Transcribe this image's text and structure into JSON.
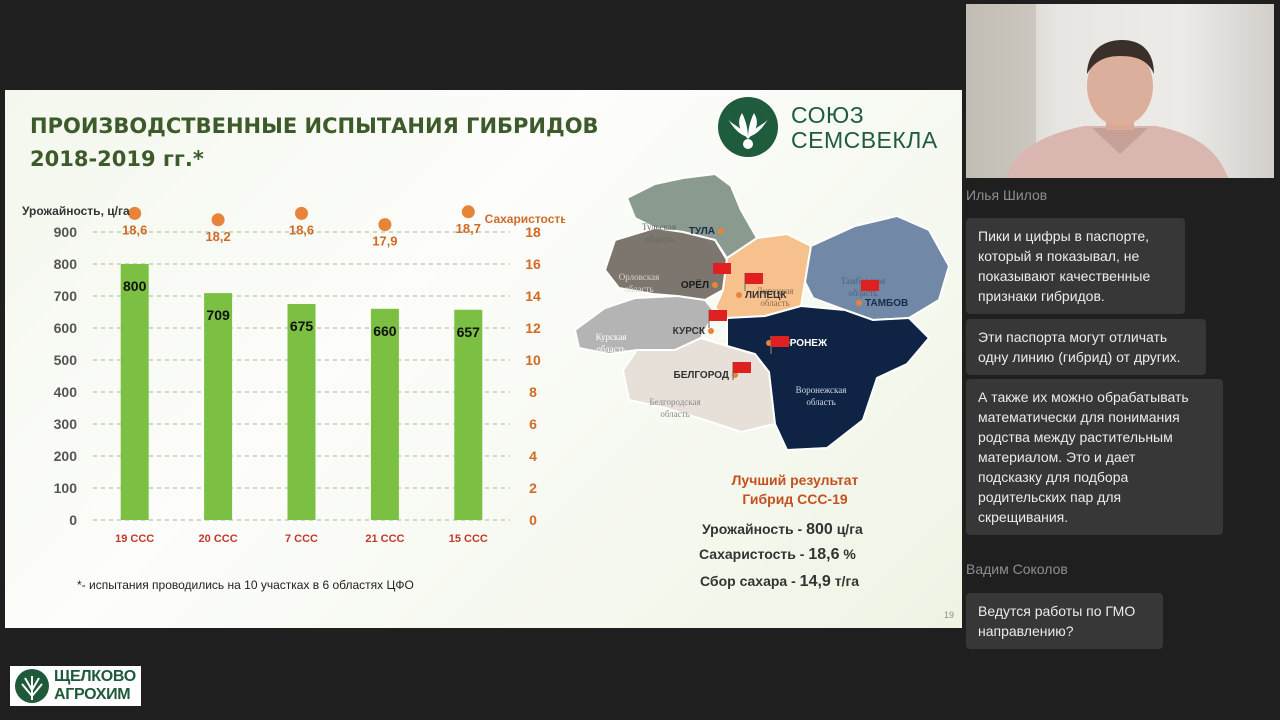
{
  "slide": {
    "title_line1": "ПРОИЗВОДСТВЕННЫЕ ИСПЫТАНИЯ ГИБРИДОВ",
    "title_line2": "2018-2019 гг.*",
    "footnote": "*- испытания проводились на 10 участках в 6 областях ЦФО",
    "page_number": "19",
    "logo_line1": "СОЮЗ",
    "logo_line2": "СЕМСВЕКЛА",
    "best_title_line1": "Лучший результат",
    "best_title_line2": "Гибрид ССС-19",
    "metrics": [
      {
        "label": "Урожайность - ",
        "value": "800",
        "unit": " ц/га"
      },
      {
        "label": "Сахаристость - ",
        "value": "18,6",
        "unit": " %"
      },
      {
        "label": "Сбор сахара - ",
        "value": "14,9",
        "unit": " т/га"
      }
    ]
  },
  "chart_data": {
    "type": "bar",
    "categories": [
      "19 ССС",
      "20 ССС",
      "7 ССС",
      "21 ССС",
      "15 ССС"
    ],
    "series": [
      {
        "name": "Урожайность, ц/га",
        "values": [
          800,
          709,
          675,
          660,
          657
        ],
        "color": "#7bc043"
      },
      {
        "name": "Сахаристость, %",
        "type": "scatter",
        "values": [
          18.6,
          18.2,
          18.6,
          17.9,
          18.7
        ],
        "labels": [
          "18,6",
          "18,2",
          "18,6",
          "17,9",
          "18,7"
        ],
        "color": "#e8843a"
      }
    ],
    "ylabel": "Урожайность, ц/га",
    "y2label": "Сахаристость, %",
    "ylim": [
      0,
      900
    ],
    "y_ticks": [
      0,
      100,
      200,
      300,
      400,
      500,
      600,
      700,
      800,
      900
    ],
    "y2lim": [
      0,
      18
    ],
    "y2_ticks": [
      0,
      2,
      4,
      6,
      8,
      10,
      12,
      14,
      16,
      18
    ],
    "grid": true
  },
  "map": {
    "regions": [
      {
        "name": "Тульская область",
        "color": "#8b9a8f",
        "text": "#5d6b60"
      },
      {
        "name": "Орловская область",
        "color": "#7d766f",
        "text": "#d8d2c8"
      },
      {
        "name": "Липецкая область",
        "color": "#f7c18e",
        "text": "#8a6b4a"
      },
      {
        "name": "Тамбовская область",
        "color": "#7188a7",
        "text": "#4e6180"
      },
      {
        "name": "Курская область",
        "color": "#b4b4b4",
        "text": "#ffffff"
      },
      {
        "name": "Белгородская область",
        "color": "#e6e0d8",
        "text": "#8a8a8a"
      },
      {
        "name": "Воронежская область",
        "color": "#0f2345",
        "text": "#d6dce8"
      }
    ],
    "cities": [
      "ТУЛА",
      "ОРЁЛ",
      "ЛИПЕЦК",
      "ТАМБОВ",
      "КУРСК",
      "ВОРОНЕЖ",
      "БЕЛГОРОД"
    ]
  },
  "video": {
    "speaker": "Илья Шилов"
  },
  "chat": [
    {
      "author": "Илья Шилов",
      "lines": [
        "Пики и цифры в паспорте,",
        "который я показывал, не",
        "показывают качественные",
        "признаки гибридов."
      ]
    },
    {
      "author": "",
      "lines": [
        "Эти паспорта могут отличать",
        "одну линию (гибрид) от других."
      ]
    },
    {
      "author": "",
      "lines": [
        "А также их можно обрабатывать",
        "математически для понимания",
        "родства между растительным",
        "материалом. Это и  дает",
        "подсказку для подбора",
        "родительских пар для",
        "скрещивания."
      ]
    },
    {
      "author": "Вадим Соколов",
      "lines": [
        "Ведутся работы по ГМО",
        "направлению?"
      ]
    }
  ],
  "brand": {
    "line1": "ЩЕЛКОВО",
    "line2": "АГРОХИМ"
  }
}
